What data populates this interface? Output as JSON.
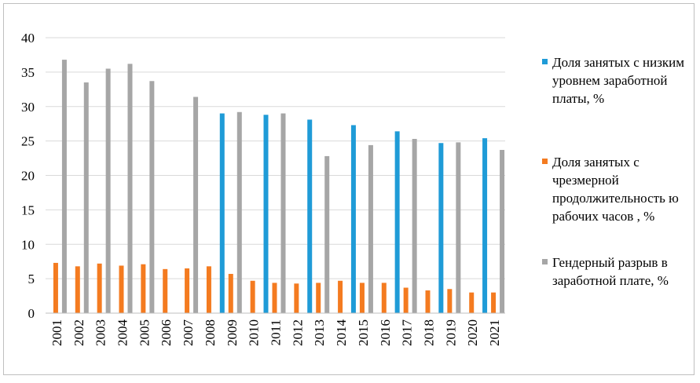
{
  "chart_data": {
    "type": "bar",
    "categories": [
      "2001",
      "2002",
      "2003",
      "2004",
      "2005",
      "2006",
      "2007",
      "2008",
      "2009",
      "2010",
      "2011",
      "2012",
      "2013",
      "2014",
      "2015",
      "2016",
      "2017",
      "2018",
      "2019",
      "2020",
      "2021"
    ],
    "series": [
      {
        "name": "Доля занятых с низким уровнем заработной платы, %",
        "color": "#1f9bd7",
        "values": [
          null,
          null,
          null,
          null,
          null,
          null,
          null,
          null,
          29.0,
          null,
          28.8,
          null,
          28.1,
          null,
          27.3,
          null,
          26.4,
          null,
          24.7,
          null,
          25.4
        ]
      },
      {
        "name": "Доля занятых с чрезмерной продолжительностью рабочих часов , %",
        "color": "#f47b20",
        "values": [
          7.3,
          6.8,
          7.2,
          6.9,
          7.1,
          6.4,
          6.5,
          6.8,
          5.7,
          4.7,
          4.4,
          4.3,
          4.4,
          4.7,
          4.4,
          4.4,
          3.7,
          3.3,
          3.5,
          3.0,
          3.0
        ]
      },
      {
        "name": "Гендерный разрыв в заработной плате, %",
        "color": "#a6a6a6",
        "values": [
          36.8,
          33.5,
          35.5,
          36.2,
          33.7,
          null,
          31.4,
          null,
          29.2,
          null,
          29.0,
          null,
          22.8,
          null,
          24.4,
          null,
          25.3,
          null,
          24.8,
          null,
          23.7
        ]
      }
    ],
    "yticks": [
      "0",
      "5",
      "10",
      "15",
      "20",
      "25",
      "30",
      "35",
      "40"
    ],
    "ylim": [
      0,
      40
    ],
    "grid": true,
    "legend_position": "right"
  },
  "legend": {
    "items": [
      {
        "label": "Доля занятых с низким уровнем заработной платы, %",
        "color": "#1f9bd7"
      },
      {
        "label": "Доля занятых с чрезмерной продолжительность ю рабочих часов , %",
        "color": "#f47b20"
      },
      {
        "label": "Гендерный разрыв в заработной плате, %",
        "color": "#a6a6a6"
      }
    ]
  }
}
